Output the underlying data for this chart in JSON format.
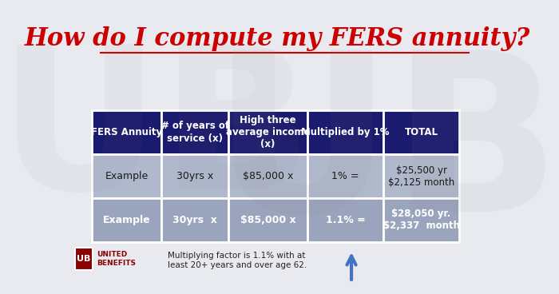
{
  "title": "How do I compute my FERS annuity?",
  "title_color": "#cc0000",
  "title_fontsize": 22,
  "bg_color": "#e8eaf0",
  "header_bg": "#1a1a6e",
  "header_text_color": "#ffffff",
  "row1_bg": "#b0b8cc",
  "row2_bg": "#9aa4bc",
  "col_headers": [
    "FERS Annuity",
    "# of years of\nservice (x)",
    "High three\naverage income\n(x)",
    "Multiplied by 1%",
    "TOTAL"
  ],
  "row1": [
    "Example",
    "30yrs x",
    "$85,000 x",
    "1% =",
    "$25,500 yr\n$2,125 month"
  ],
  "row2": [
    "Example",
    "30yrs  x",
    "$85,000 x",
    "1.1% =",
    "$28,050 yr.\n$2,337  month"
  ],
  "row2_total_bold": true,
  "footnote": "Multiplying factor is 1.1% with at\nleast 20+ years and over age 62.",
  "arrow_color": "#4472c4",
  "logo_box_color": "#8b0000",
  "logo_text": "UNITED\nBENEFITS"
}
